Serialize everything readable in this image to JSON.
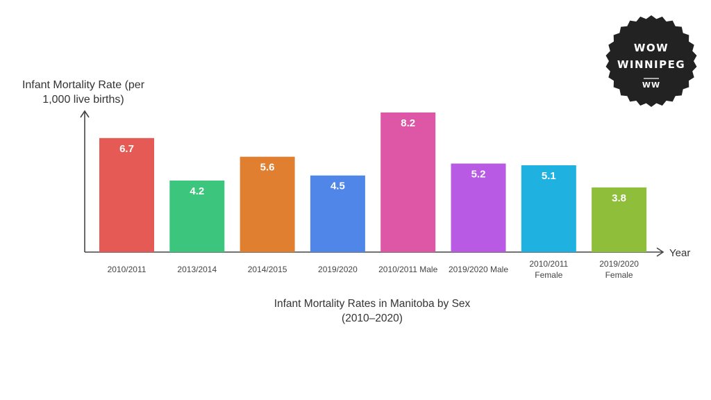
{
  "chart_data": {
    "type": "bar",
    "ylabel_lines": [
      "Infant Mortality Rate (per",
      "1,000 live births)"
    ],
    "xlabel": "Year",
    "categories": [
      [
        "2010/2011"
      ],
      [
        "2013/2014"
      ],
      [
        "2014/2015"
      ],
      [
        "2019/2020"
      ],
      [
        "2010/2011 Male"
      ],
      [
        "2019/2020 Male"
      ],
      [
        "2010/2011",
        "Female"
      ],
      [
        "2019/2020",
        "Female"
      ]
    ],
    "values": [
      6.7,
      4.2,
      5.6,
      4.5,
      8.2,
      5.2,
      5.1,
      3.8
    ],
    "value_labels": [
      "6.7",
      "4.2",
      "5.6",
      "4.5",
      "8.2",
      "5.2",
      "5.1",
      "3.8"
    ],
    "colors": [
      "#e55a54",
      "#3cc57c",
      "#e07f30",
      "#4f86e8",
      "#de57a7",
      "#b85ae3",
      "#1fb1e0",
      "#8fbe3b"
    ],
    "caption_lines": [
      "Infant Mortality Rates in Manitoba by Sex",
      "(2010–2020)"
    ],
    "ylim": [
      0,
      8.2
    ],
    "grid": false,
    "legend": "none"
  },
  "badge": {
    "line1": "WOW",
    "line2": "WINNIPEG",
    "monogram": "WW",
    "background": "#222222"
  }
}
